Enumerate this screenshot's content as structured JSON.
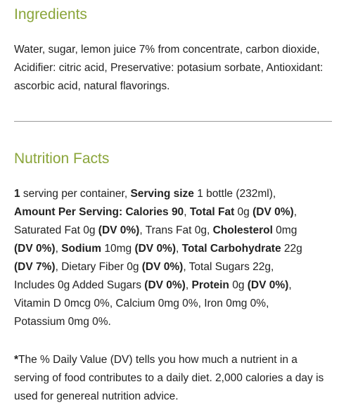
{
  "ingredients": {
    "title": "Ingredients",
    "text": "Water, sugar, lemon juice 7% from concentrate, carbon dioxide, Acidifier: citric acid, Preservative: potasium sorbate,  Antioxidant: ascorbic acid, natural flavorings."
  },
  "nutrition": {
    "title": "Nutrition Facts",
    "line1": {
      "servings_count": "1",
      "servings_text": " serving per container, ",
      "serving_size_label": "Serving size",
      "serving_size_value": " 1 bottle (232ml),"
    },
    "line2": {
      "amount_label": "Amount Per Serving: Calories 90",
      "sep": ", ",
      "fat_label": "Total Fat",
      "fat_value": " 0g ",
      "fat_dv": "(DV 0%)",
      "end": ","
    },
    "line3": {
      "sat_fat": "Saturated Fat 0g ",
      "sat_fat_dv": "(DV 0%)",
      "trans_fat": ", Trans Fat 0g, ",
      "chol_label": "Cholesterol",
      "chol_value": " 0mg"
    },
    "line4": {
      "chol_dv": "(DV 0%)",
      "sep": ", ",
      "sodium_label": "Sodium",
      "sodium_value": " 10mg ",
      "sodium_dv": "(DV 0%)",
      "sep2": ", ",
      "carb_label": "Total Carbohydrate",
      "carb_value": " 22g"
    },
    "line5": {
      "carb_dv": "(DV 7%)",
      "fiber": ", Dietary Fiber 0g ",
      "fiber_dv": "(DV 0%)",
      "sugars": ", Total Sugars 22g,"
    },
    "line6": {
      "added_sugars": "Includes 0g Added Sugars ",
      "added_sugars_dv": "(DV 0%)",
      "sep": ", ",
      "protein_label": "Protein",
      "protein_value": " 0g ",
      "protein_dv": "(DV 0%)",
      "end": ","
    },
    "line7": "Vitamin D 0mcg 0%, Calcium 0mg 0%, Iron 0mg 0%,",
    "line8": "Potassium 0mg 0%."
  },
  "footnote": {
    "star": "*",
    "text": "The % Daily Value (DV) tells you how much a nutrient in a serving of food contributes to a daily diet. 2,000 calories a day is used for genereal nutrition advice."
  }
}
